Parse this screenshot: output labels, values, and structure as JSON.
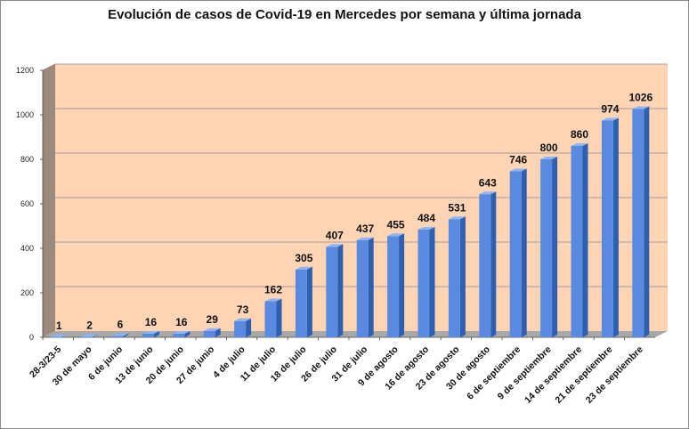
{
  "chart_data": {
    "type": "bar",
    "title": "Evolución de casos de Covid-19 en Mercedes por semana y última jornada",
    "xlabel": "",
    "ylabel": "",
    "ylim": [
      0,
      1200
    ],
    "yticks": [
      0,
      200,
      400,
      600,
      800,
      1000,
      1200
    ],
    "grid": true,
    "legend": "none",
    "categories": [
      "28-3/23-5",
      "30 de mayo",
      "6 de junio",
      "13 de junio",
      "20 de junio",
      "27 de junio",
      "4 de julio",
      "11 de julio",
      "18 de julio",
      "26 de julio",
      "31 de julio",
      "9 de agosto",
      "16 de agosto",
      "23 de agosto",
      "30 de agosto",
      "6 de septiembre",
      "9 de septiembre",
      "14 de septiembre",
      "21 de septiembre",
      "23 de septiembre"
    ],
    "values": [
      1,
      2,
      6,
      16,
      16,
      29,
      73,
      162,
      305,
      407,
      437,
      455,
      484,
      531,
      643,
      746,
      800,
      860,
      974,
      1026
    ],
    "colors": {
      "plot_background": "#fdd4b4",
      "wall_side": "#9e8a7a",
      "floor": "#a8a8a8",
      "bar_front": "#5a8ae0",
      "bar_top": "#8fb4f2",
      "bar_side": "#2f5fb0",
      "gridline": "#8c8c8c"
    }
  }
}
